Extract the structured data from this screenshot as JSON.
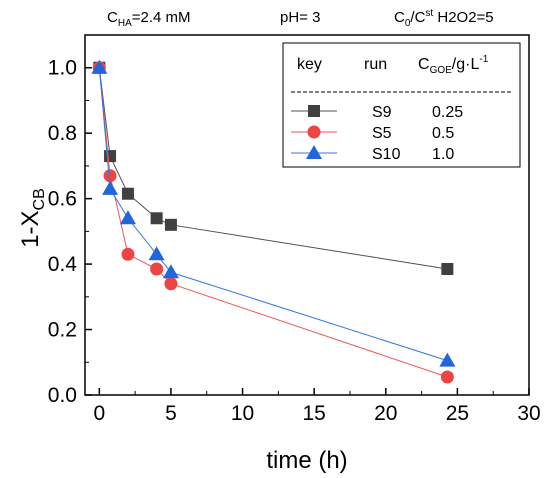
{
  "conditions": {
    "cha_base": "C",
    "cha_sub": "HA",
    "cha_value": "=2.4 mM",
    "ph": "pH= 3",
    "ratio_base": "C",
    "ratio_sub": "0",
    "ratio_mid": "/C",
    "ratio_sup": "st",
    "ratio_rest": " H2O2=5"
  },
  "legend": {
    "header_key": "key",
    "header_run": "run",
    "header_cgoe_base": "C",
    "header_cgoe_sub": "GOE",
    "header_cgoe_unit": "/g·L",
    "header_cgoe_sup": "-1"
  },
  "chart_data": {
    "type": "line",
    "xlabel": "time (h)",
    "ylabel_base": "1-X",
    "ylabel_sub": "CB",
    "xlim": [
      -1,
      30
    ],
    "ylim": [
      0.0,
      1.1
    ],
    "xticks": [
      0,
      5,
      10,
      15,
      20,
      25,
      30
    ],
    "yticks": [
      0.0,
      0.2,
      0.4,
      0.6,
      0.8,
      1.0
    ],
    "ytick_labels": [
      "0.0",
      "0.2",
      "0.4",
      "0.6",
      "0.8",
      "1.0"
    ],
    "grid": false,
    "legend_position": "top-right",
    "series": [
      {
        "run": "S9",
        "cgoe": "0.25",
        "marker": "square",
        "color": "#404040",
        "line_color": "#505050",
        "x": [
          0,
          0.75,
          2,
          4,
          5,
          24.3
        ],
        "y": [
          1.0,
          0.73,
          0.615,
          0.54,
          0.52,
          0.385
        ]
      },
      {
        "run": "S5",
        "cgoe": "0.5",
        "marker": "circle",
        "color": "#ee4444",
        "line_color": "#ee5555",
        "x": [
          0,
          0.75,
          2,
          4,
          5,
          24.3
        ],
        "y": [
          1.0,
          0.67,
          0.43,
          0.385,
          0.34,
          0.055
        ]
      },
      {
        "run": "S10",
        "cgoe": "1.0",
        "marker": "triangle",
        "color": "#2266dd",
        "line_color": "#3377dd",
        "x": [
          0,
          0.75,
          2,
          4,
          5,
          24.3
        ],
        "y": [
          1.0,
          0.63,
          0.54,
          0.43,
          0.375,
          0.105
        ]
      }
    ]
  }
}
